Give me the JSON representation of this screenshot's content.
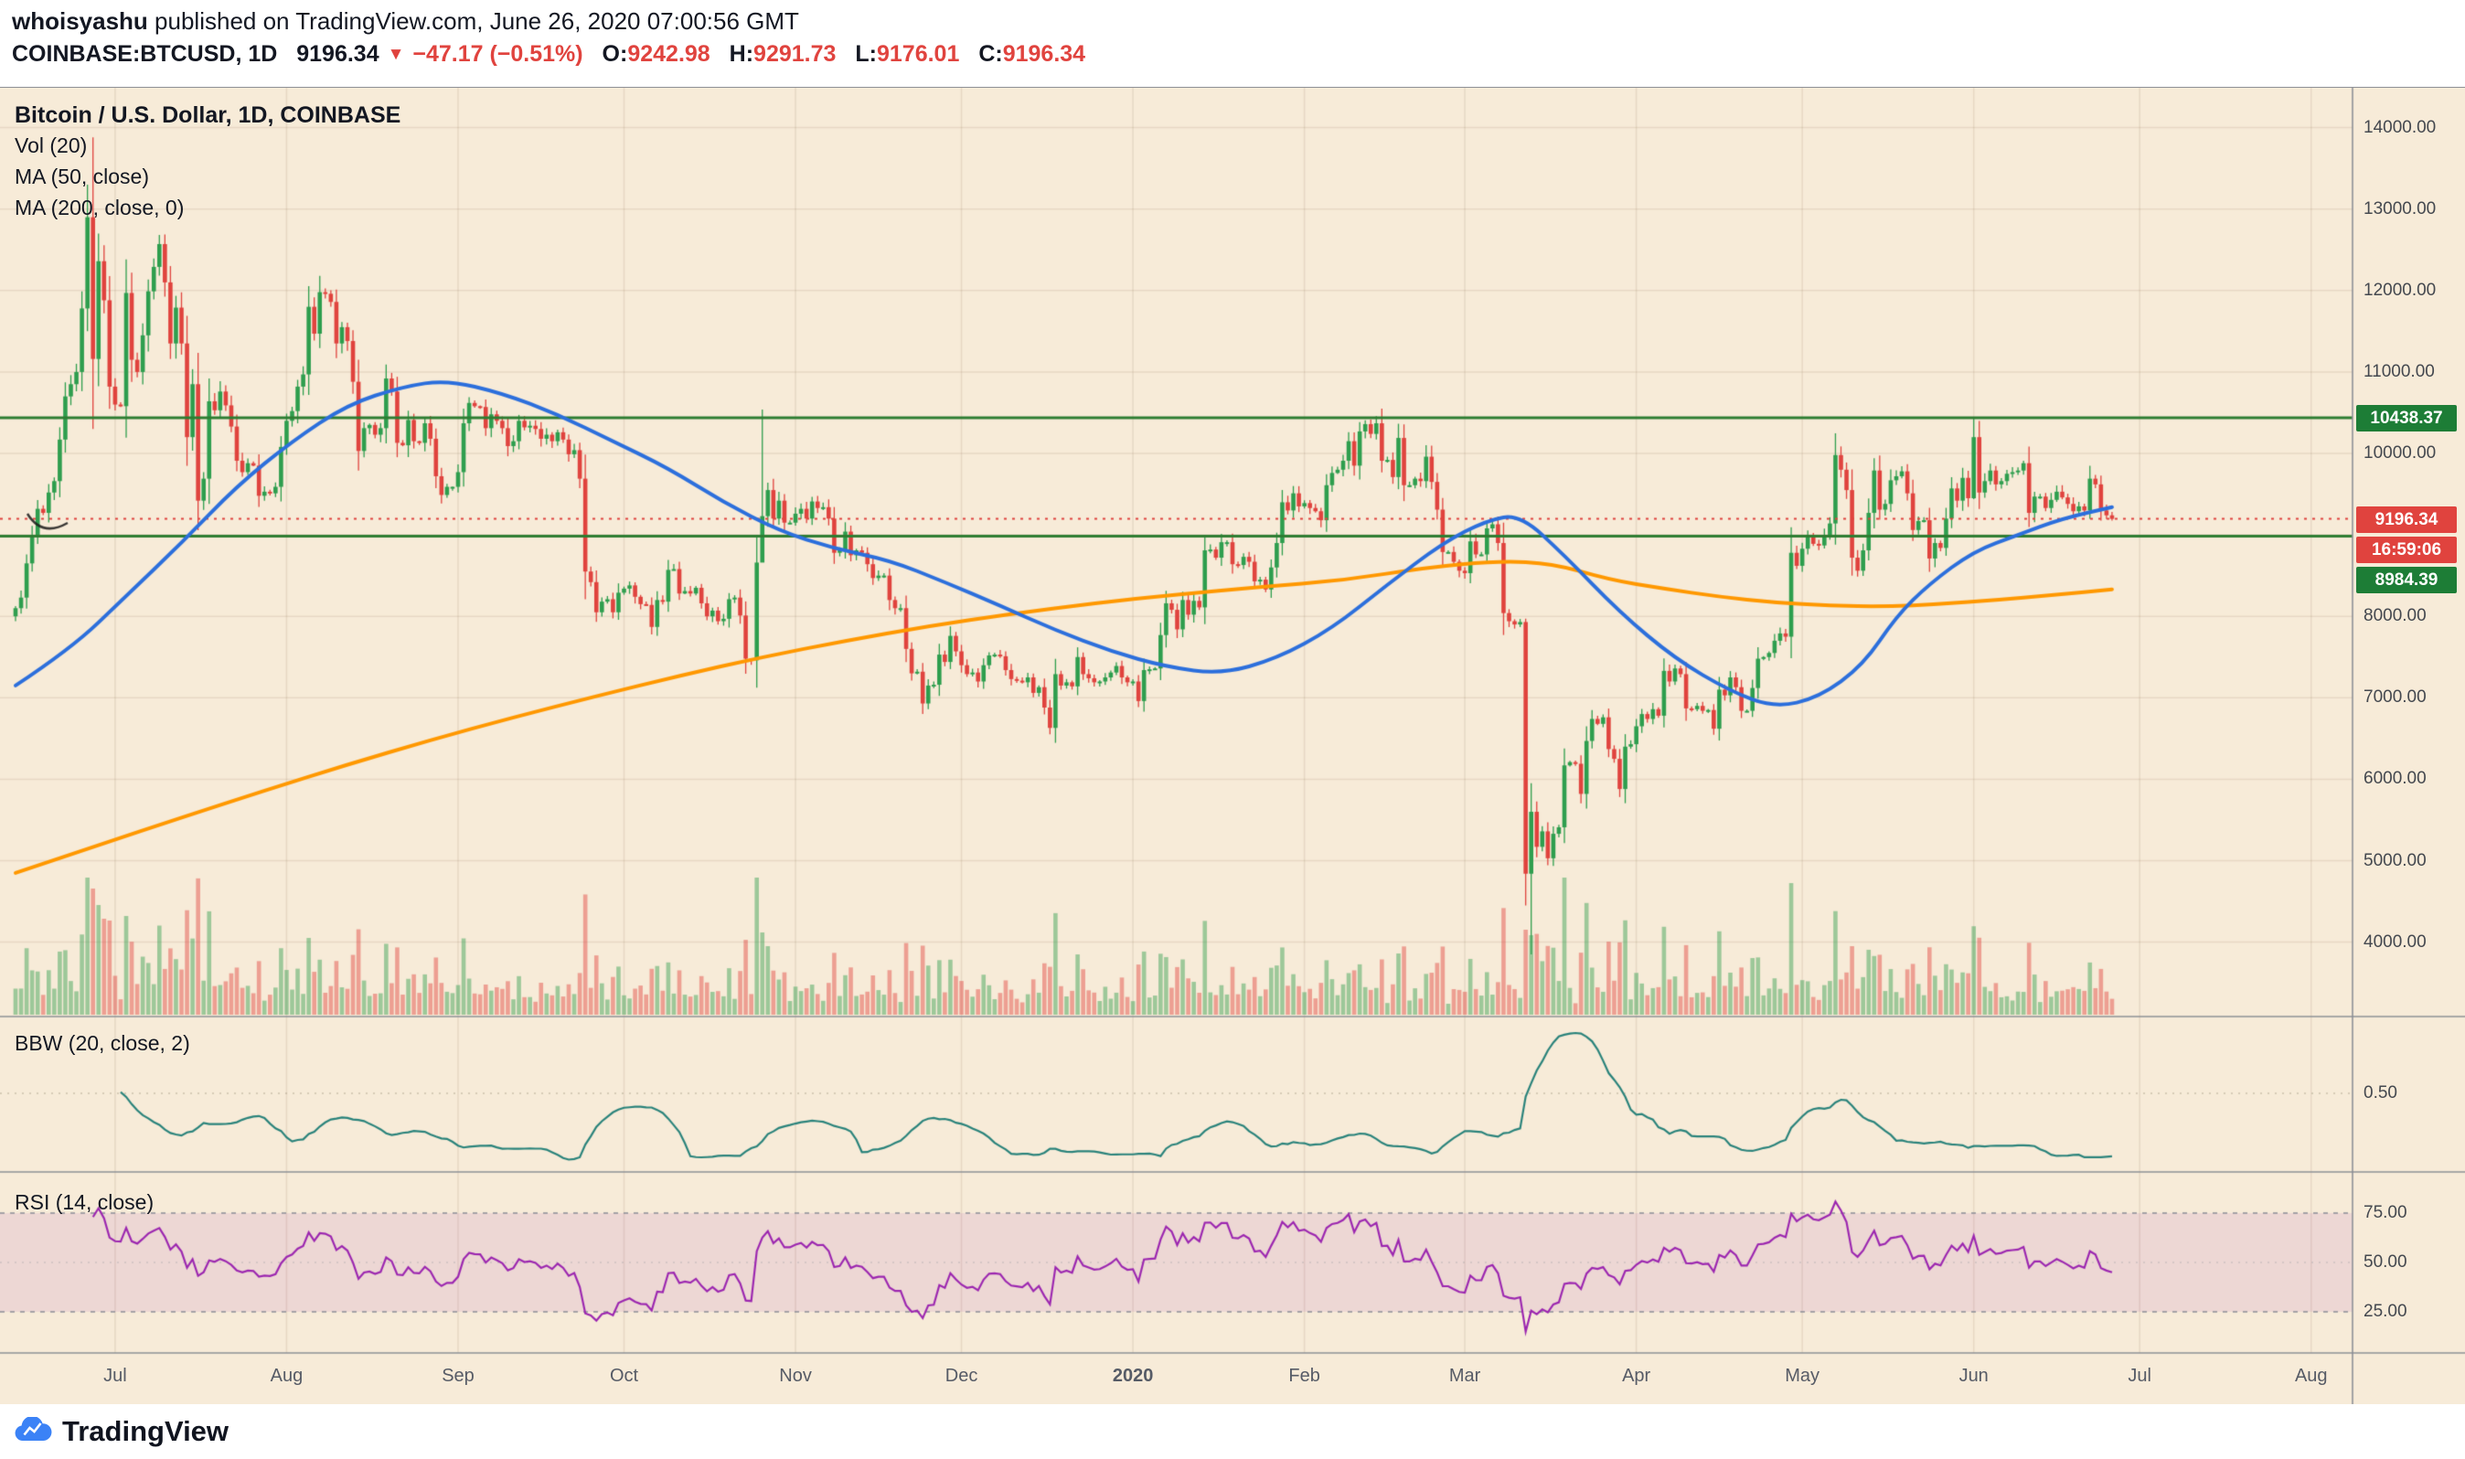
{
  "header": {
    "author": "whoisyashu",
    "published": " published on TradingView.com, June 26, 2020 07:00:56 GMT",
    "symbol": "COINBASE:BTCUSD, 1D",
    "last_price": "9196.34",
    "direction_icon": "▼",
    "change": "−47.17 (−0.51%)",
    "open_label": "O:",
    "open": "9242.98",
    "high_label": "H:",
    "high": "9291.73",
    "low_label": "L:",
    "low": "9176.01",
    "close_label": "C:",
    "close": "9196.34"
  },
  "legend": {
    "title": "Bitcoin / U.S. Dollar, 1D, COINBASE",
    "volume": "Vol (20)",
    "ma50": "MA (50, close)",
    "ma200": "MA (200, close, 0)"
  },
  "indicator_labels": {
    "bbw": "BBW (20, close, 2)",
    "rsi": "RSI (14, close)"
  },
  "price_axis": {
    "ticks": [
      {
        "label": "14000.00",
        "value": 14000
      },
      {
        "label": "13000.00",
        "value": 13000
      },
      {
        "label": "12000.00",
        "value": 12000
      },
      {
        "label": "11000.00",
        "value": 11000
      },
      {
        "label": "10000.00",
        "value": 10000
      },
      {
        "label": "8000.00",
        "value": 8000
      },
      {
        "label": "7000.00",
        "value": 7000
      },
      {
        "label": "6000.00",
        "value": 6000
      },
      {
        "label": "5000.00",
        "value": 5000
      },
      {
        "label": "4000.00",
        "value": 4000
      }
    ]
  },
  "bbw_axis": {
    "ticks": [
      {
        "label": "0.50",
        "value": 0.5
      }
    ]
  },
  "rsi_axis": {
    "ticks": [
      {
        "label": "75.00",
        "value": 75
      },
      {
        "label": "50.00",
        "value": 50
      },
      {
        "label": "25.00",
        "value": 25
      }
    ]
  },
  "time_axis": {
    "labels": [
      {
        "label": "Jul",
        "idx": 18,
        "bold": false
      },
      {
        "label": "Aug",
        "idx": 49,
        "bold": false
      },
      {
        "label": "Sep",
        "idx": 80,
        "bold": false
      },
      {
        "label": "Oct",
        "idx": 110,
        "bold": false
      },
      {
        "label": "Nov",
        "idx": 141,
        "bold": false
      },
      {
        "label": "Dec",
        "idx": 171,
        "bold": false
      },
      {
        "label": "2020",
        "idx": 202,
        "bold": true
      },
      {
        "label": "Feb",
        "idx": 233,
        "bold": false
      },
      {
        "label": "Mar",
        "idx": 262,
        "bold": false
      },
      {
        "label": "Apr",
        "idx": 293,
        "bold": false
      },
      {
        "label": "May",
        "idx": 323,
        "bold": false
      },
      {
        "label": "Jun",
        "idx": 354,
        "bold": false
      },
      {
        "label": "Jul",
        "idx": 384,
        "bold": false
      },
      {
        "label": "Aug",
        "idx": 415,
        "bold": false
      }
    ]
  },
  "badges": [
    {
      "label": "10438.37",
      "price": 10438.37,
      "bg": "#1d7d36",
      "stack": false
    },
    {
      "label": "9196.34",
      "price": 9196.34,
      "bg": "#e0433e",
      "stack": false
    },
    {
      "label": "16:59:06",
      "bg": "#e0433e",
      "stack": true
    },
    {
      "label": "8984.39",
      "bg": "#1d7d36",
      "stack": true
    }
  ],
  "footer": {
    "brand": "TradingView"
  },
  "colors": {
    "background": "#f7ebd8",
    "panel_border": "#8d9096",
    "grid": "rgba(120,95,60,0.13)",
    "up": "#2e9e4e",
    "down": "#e0433e",
    "vol_up": "rgba(46,158,78,0.45)",
    "vol_down": "rgba(224,67,62,0.45)",
    "ma50": "#2c6fdc",
    "ma200": "#ff9800",
    "bbw": "#2a837b",
    "rsi": "#9c27b0",
    "rsi_band": "rgba(156,39,176,0.10)",
    "rsi_dash": "#8c8f96",
    "hline": "#2e7d32",
    "price_line": "#e0433e",
    "axis_text": "#44484f"
  },
  "chart_data": {
    "type": "candlestick",
    "title": "Bitcoin / U.S. Dollar, 1D, COINBASE",
    "interval": "1D",
    "price_line_value": 9196.34,
    "hlines": [
      10438.37,
      8984.39
    ],
    "y_axis_range_approx": [
      3150,
      14490
    ],
    "first_open": 8000,
    "closes": [
      8100,
      8230,
      8650,
      8990,
      9320,
      9270,
      9520,
      9660,
      10170,
      10700,
      10850,
      11000,
      11780,
      12900,
      11160,
      12360,
      11880,
      10820,
      10600,
      10580,
      11970,
      11150,
      11000,
      11450,
      11990,
      12290,
      12570,
      12100,
      11350,
      11790,
      11350,
      10200,
      10850,
      9420,
      9690,
      10640,
      10530,
      10760,
      10590,
      10330,
      9910,
      9770,
      9880,
      9850,
      9480,
      9530,
      9510,
      9590,
      10080,
      10400,
      10520,
      10820,
      10970,
      11800,
      11470,
      11980,
      11960,
      11860,
      11350,
      11550,
      11380,
      10880,
      10030,
      10310,
      10350,
      10230,
      10310,
      10920,
      10760,
      10130,
      10100,
      10410,
      10150,
      10130,
      10370,
      10180,
      9720,
      9490,
      9590,
      9590,
      9770,
      10370,
      10620,
      10580,
      10570,
      10310,
      10480,
      10400,
      10310,
      10090,
      10150,
      10400,
      10320,
      10340,
      10300,
      10180,
      10230,
      10150,
      10260,
      10170,
      9990,
      10040,
      9690,
      8550,
      8420,
      8050,
      8180,
      8210,
      8050,
      8290,
      8340,
      8380,
      8240,
      8150,
      8140,
      7870,
      8200,
      8180,
      8570,
      8580,
      8280,
      8310,
      8280,
      8350,
      8160,
      8000,
      8070,
      7940,
      7970,
      8210,
      8230,
      8010,
      7480,
      7460,
      8660,
      9230,
      9550,
      9200,
      9420,
      9150,
      9150,
      9260,
      9320,
      9200,
      9410,
      9330,
      9340,
      9200,
      8780,
      8810,
      9040,
      8750,
      8810,
      8780,
      8640,
      8470,
      8500,
      8500,
      8200,
      8100,
      8100,
      7600,
      7300,
      7320,
      6930,
      7150,
      7160,
      7530,
      7440,
      7760,
      7570,
      7400,
      7290,
      7310,
      7200,
      7400,
      7520,
      7530,
      7510,
      7340,
      7230,
      7210,
      7190,
      7250,
      7060,
      7130,
      6880,
      6630,
      7290,
      7150,
      7190,
      7140,
      7500,
      7290,
      7240,
      7190,
      7200,
      7250,
      7310,
      7390,
      7250,
      7190,
      7200,
      6960,
      7340,
      7350,
      7360,
      7770,
      8160,
      8080,
      7840,
      8200,
      8020,
      8190,
      8110,
      8810,
      8820,
      8720,
      8910,
      8910,
      8640,
      8630,
      8730,
      8670,
      8430,
      8450,
      8330,
      8600,
      8900,
      9400,
      9300,
      9510,
      9350,
      9390,
      9330,
      9290,
      9180,
      9610,
      9760,
      9800,
      9910,
      10150,
      9850,
      10270,
      10360,
      10240,
      10370,
      9910,
      9920,
      9710,
      10190,
      9610,
      9610,
      9690,
      9660,
      9960,
      9650,
      9310,
      8790,
      8790,
      8670,
      8560,
      8530,
      8920,
      8760,
      8760,
      9080,
      9130,
      8900,
      8040,
      7940,
      7900,
      7930,
      4840,
      5600,
      5170,
      5360,
      5030,
      5330,
      5410,
      6170,
      6210,
      6190,
      5820,
      6470,
      6740,
      6680,
      6760,
      6370,
      6250,
      5880,
      6400,
      6430,
      6650,
      6800,
      6740,
      6860,
      6780,
      7330,
      7200,
      7360,
      7290,
      6870,
      6860,
      6900,
      6840,
      6850,
      6620,
      7100,
      7030,
      7250,
      7130,
      6840,
      6840,
      7120,
      7480,
      7500,
      7550,
      7700,
      7790,
      7750,
      8780,
      8620,
      8830,
      8980,
      8890,
      8870,
      9000,
      9140,
      9980,
      9800,
      9550,
      8720,
      8560,
      8810,
      9270,
      9790,
      9310,
      9380,
      9670,
      9720,
      9780,
      9510,
      9060,
      9170,
      9180,
      8710,
      8900,
      8840,
      9200,
      9570,
      9420,
      9700,
      9450,
      10200,
      9520,
      9660,
      9790,
      9620,
      9660,
      9750,
      9770,
      9790,
      9880,
      9270,
      9470,
      9470,
      9330,
      9430,
      9530,
      9460,
      9380,
      9290,
      9350,
      9300,
      9690,
      9620,
      9300,
      9240,
      9196.34
    ],
    "wick_overrides": {
      "13": [
        13300,
        11500
      ],
      "14": [
        13880,
        10300
      ],
      "135": [
        10540,
        9110
      ],
      "273": [
        7970,
        4450
      ],
      "274": [
        5950,
        3850
      ],
      "354": [
        10430,
        9440
      ]
    },
    "volume_overrides": {
      "13": 1.0,
      "14": 0.92,
      "15": 0.8,
      "16": 0.7,
      "20": 0.72,
      "26": 0.65,
      "135": 0.6,
      "136": 0.5,
      "273": 0.62,
      "274": 0.58,
      "332": 0.5
    },
    "ma50_anchors": [
      [
        0,
        7150
      ],
      [
        10,
        7600
      ],
      [
        20,
        8250
      ],
      [
        30,
        8900
      ],
      [
        40,
        9600
      ],
      [
        50,
        10150
      ],
      [
        60,
        10600
      ],
      [
        70,
        10820
      ],
      [
        78,
        10900
      ],
      [
        88,
        10740
      ],
      [
        98,
        10480
      ],
      [
        108,
        10150
      ],
      [
        118,
        9820
      ],
      [
        128,
        9400
      ],
      [
        138,
        9050
      ],
      [
        148,
        8830
      ],
      [
        158,
        8690
      ],
      [
        168,
        8420
      ],
      [
        178,
        8130
      ],
      [
        188,
        7830
      ],
      [
        198,
        7570
      ],
      [
        208,
        7380
      ],
      [
        218,
        7290
      ],
      [
        228,
        7480
      ],
      [
        238,
        7850
      ],
      [
        248,
        8390
      ],
      [
        258,
        8900
      ],
      [
        266,
        9180
      ],
      [
        272,
        9250
      ],
      [
        280,
        8750
      ],
      [
        290,
        8050
      ],
      [
        300,
        7480
      ],
      [
        310,
        7080
      ],
      [
        318,
        6880
      ],
      [
        326,
        7000
      ],
      [
        334,
        7400
      ],
      [
        340,
        8000
      ],
      [
        346,
        8400
      ],
      [
        354,
        8800
      ],
      [
        362,
        9000
      ],
      [
        370,
        9200
      ],
      [
        379,
        9340
      ]
    ],
    "ma200_anchors": [
      [
        0,
        4850
      ],
      [
        15,
        5190
      ],
      [
        30,
        5530
      ],
      [
        45,
        5860
      ],
      [
        60,
        6180
      ],
      [
        75,
        6480
      ],
      [
        90,
        6760
      ],
      [
        105,
        7020
      ],
      [
        120,
        7270
      ],
      [
        135,
        7500
      ],
      [
        150,
        7700
      ],
      [
        165,
        7880
      ],
      [
        180,
        8030
      ],
      [
        195,
        8160
      ],
      [
        210,
        8270
      ],
      [
        225,
        8360
      ],
      [
        240,
        8440
      ],
      [
        255,
        8600
      ],
      [
        268,
        8680
      ],
      [
        278,
        8650
      ],
      [
        288,
        8450
      ],
      [
        298,
        8340
      ],
      [
        308,
        8240
      ],
      [
        318,
        8170
      ],
      [
        328,
        8130
      ],
      [
        338,
        8120
      ],
      [
        348,
        8150
      ],
      [
        358,
        8200
      ],
      [
        368,
        8260
      ],
      [
        379,
        8330
      ]
    ],
    "indicators": {
      "volume_ma_period": 20,
      "bbw": {
        "period": 20,
        "stdev_mult": 2
      },
      "rsi": {
        "period": 14
      }
    }
  }
}
